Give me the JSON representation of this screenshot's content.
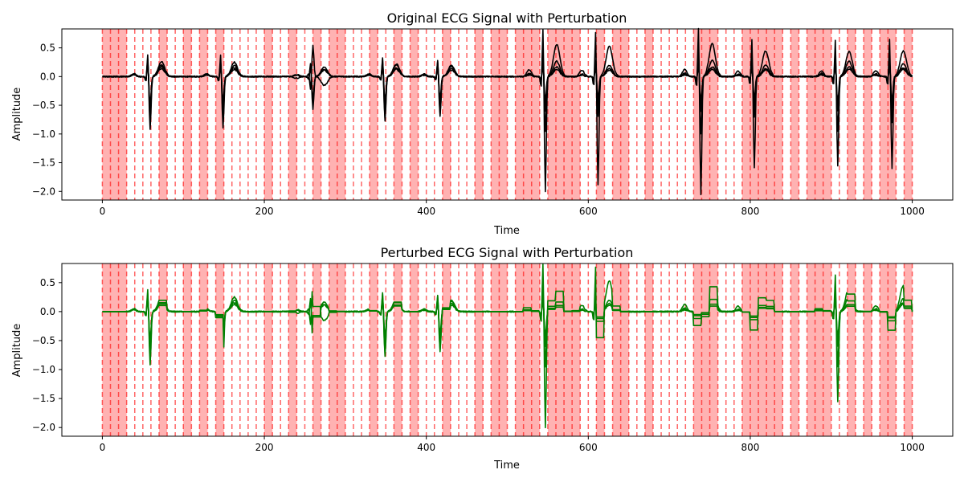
{
  "figure": {
    "background": "#ffffff"
  },
  "colors": {
    "original_series": "#000000",
    "perturbed_series": "#008000",
    "perturbation_fill": "#ff0000",
    "perturbation_line": "#ff0000"
  },
  "chart_data": [
    {
      "id": "original",
      "type": "line",
      "title": "Original ECG Signal with Perturbation",
      "xlabel": "Time",
      "ylabel": "Amplitude",
      "xlim": [
        -50,
        1050
      ],
      "ylim": [
        -2.15,
        0.83
      ],
      "xticks": [
        0,
        200,
        400,
        600,
        800,
        1000
      ],
      "yticks": [
        -2.0,
        -1.5,
        -1.0,
        -0.5,
        0.0,
        0.5
      ],
      "xtick_labels": [
        "0",
        "200",
        "400",
        "600",
        "800",
        "1000"
      ],
      "ytick_labels": [
        "−2.0",
        "−1.5",
        "−1.0",
        "−0.5",
        "0.0",
        "0.5"
      ],
      "grid": false,
      "line_color": "#000000",
      "series_count": 4
    },
    {
      "id": "perturbed",
      "type": "line",
      "title": "Perturbed ECG Signal with Perturbation",
      "xlabel": "Time",
      "ylabel": "Amplitude",
      "xlim": [
        -50,
        1050
      ],
      "ylim": [
        -2.15,
        0.83
      ],
      "xticks": [
        0,
        200,
        400,
        600,
        800,
        1000
      ],
      "yticks": [
        -2.0,
        -1.5,
        -1.0,
        -0.5,
        0.0,
        0.5
      ],
      "xtick_labels": [
        "0",
        "200",
        "400",
        "600",
        "800",
        "1000"
      ],
      "ytick_labels": [
        "−2.0",
        "−1.5",
        "−1.0",
        "−0.5",
        "0.0",
        "0.5"
      ],
      "grid": false,
      "line_color": "#008000",
      "series_count": 4
    }
  ],
  "perturbation": {
    "interval_step": 10,
    "shaded_intervals": [
      [
        0,
        10
      ],
      [
        10,
        20
      ],
      [
        20,
        30
      ],
      [
        70,
        80
      ],
      [
        100,
        110
      ],
      [
        120,
        130
      ],
      [
        140,
        150
      ],
      [
        200,
        210
      ],
      [
        230,
        240
      ],
      [
        260,
        270
      ],
      [
        280,
        290
      ],
      [
        290,
        300
      ],
      [
        330,
        340
      ],
      [
        360,
        370
      ],
      [
        380,
        390
      ],
      [
        420,
        430
      ],
      [
        460,
        470
      ],
      [
        480,
        490
      ],
      [
        490,
        500
      ],
      [
        510,
        520
      ],
      [
        520,
        530
      ],
      [
        530,
        540
      ],
      [
        550,
        560
      ],
      [
        560,
        570
      ],
      [
        570,
        580
      ],
      [
        580,
        590
      ],
      [
        610,
        620
      ],
      [
        630,
        640
      ],
      [
        640,
        650
      ],
      [
        670,
        680
      ],
      [
        730,
        740
      ],
      [
        740,
        750
      ],
      [
        750,
        760
      ],
      [
        790,
        800
      ],
      [
        800,
        810
      ],
      [
        810,
        820
      ],
      [
        820,
        830
      ],
      [
        830,
        840
      ],
      [
        850,
        860
      ],
      [
        870,
        880
      ],
      [
        880,
        890
      ],
      [
        890,
        900
      ],
      [
        920,
        930
      ],
      [
        940,
        950
      ],
      [
        960,
        970
      ],
      [
        970,
        980
      ],
      [
        990,
        1000
      ]
    ]
  },
  "ecg": {
    "beats": [
      {
        "t": 57,
        "amps": [
          0.92,
          0.75,
          0.62,
          0.5
        ],
        "inverted": [
          false,
          false,
          false,
          false
        ]
      },
      {
        "t": 147,
        "amps": [
          0.9,
          0.7,
          0.55,
          0.45
        ],
        "inverted": [
          false,
          false,
          false,
          false
        ]
      },
      {
        "t": 258,
        "amps": [
          0.58,
          0.55,
          0.45,
          0.4
        ],
        "inverted": [
          false,
          true,
          false,
          false
        ]
      },
      {
        "t": 347,
        "amps": [
          0.78,
          0.72,
          0.55,
          0.45
        ],
        "inverted": [
          false,
          false,
          false,
          false
        ]
      },
      {
        "t": 415,
        "amps": [
          0.7,
          0.65,
          0.5,
          0.4
        ],
        "inverted": [
          false,
          false,
          false,
          false
        ]
      },
      {
        "t": 545,
        "amps": [
          2.0,
          0.95,
          0.6,
          0.45
        ],
        "inverted": [
          false,
          false,
          false,
          false
        ]
      },
      {
        "t": 610,
        "amps": [
          1.88,
          0.7,
          0.5,
          0.4
        ],
        "inverted": [
          false,
          false,
          false,
          false
        ]
      },
      {
        "t": 737,
        "amps": [
          2.05,
          1.0,
          0.6,
          0.45
        ],
        "inverted": [
          false,
          false,
          false,
          false
        ]
      },
      {
        "t": 803,
        "amps": [
          1.6,
          0.7,
          0.5,
          0.4
        ],
        "inverted": [
          false,
          false,
          false,
          false
        ]
      },
      {
        "t": 906,
        "amps": [
          1.55,
          0.95,
          0.6,
          0.45
        ],
        "inverted": [
          false,
          false,
          false,
          false
        ]
      },
      {
        "t": 973,
        "amps": [
          1.6,
          0.8,
          0.55,
          0.45
        ],
        "inverted": [
          false,
          false,
          false,
          false
        ]
      }
    ]
  }
}
